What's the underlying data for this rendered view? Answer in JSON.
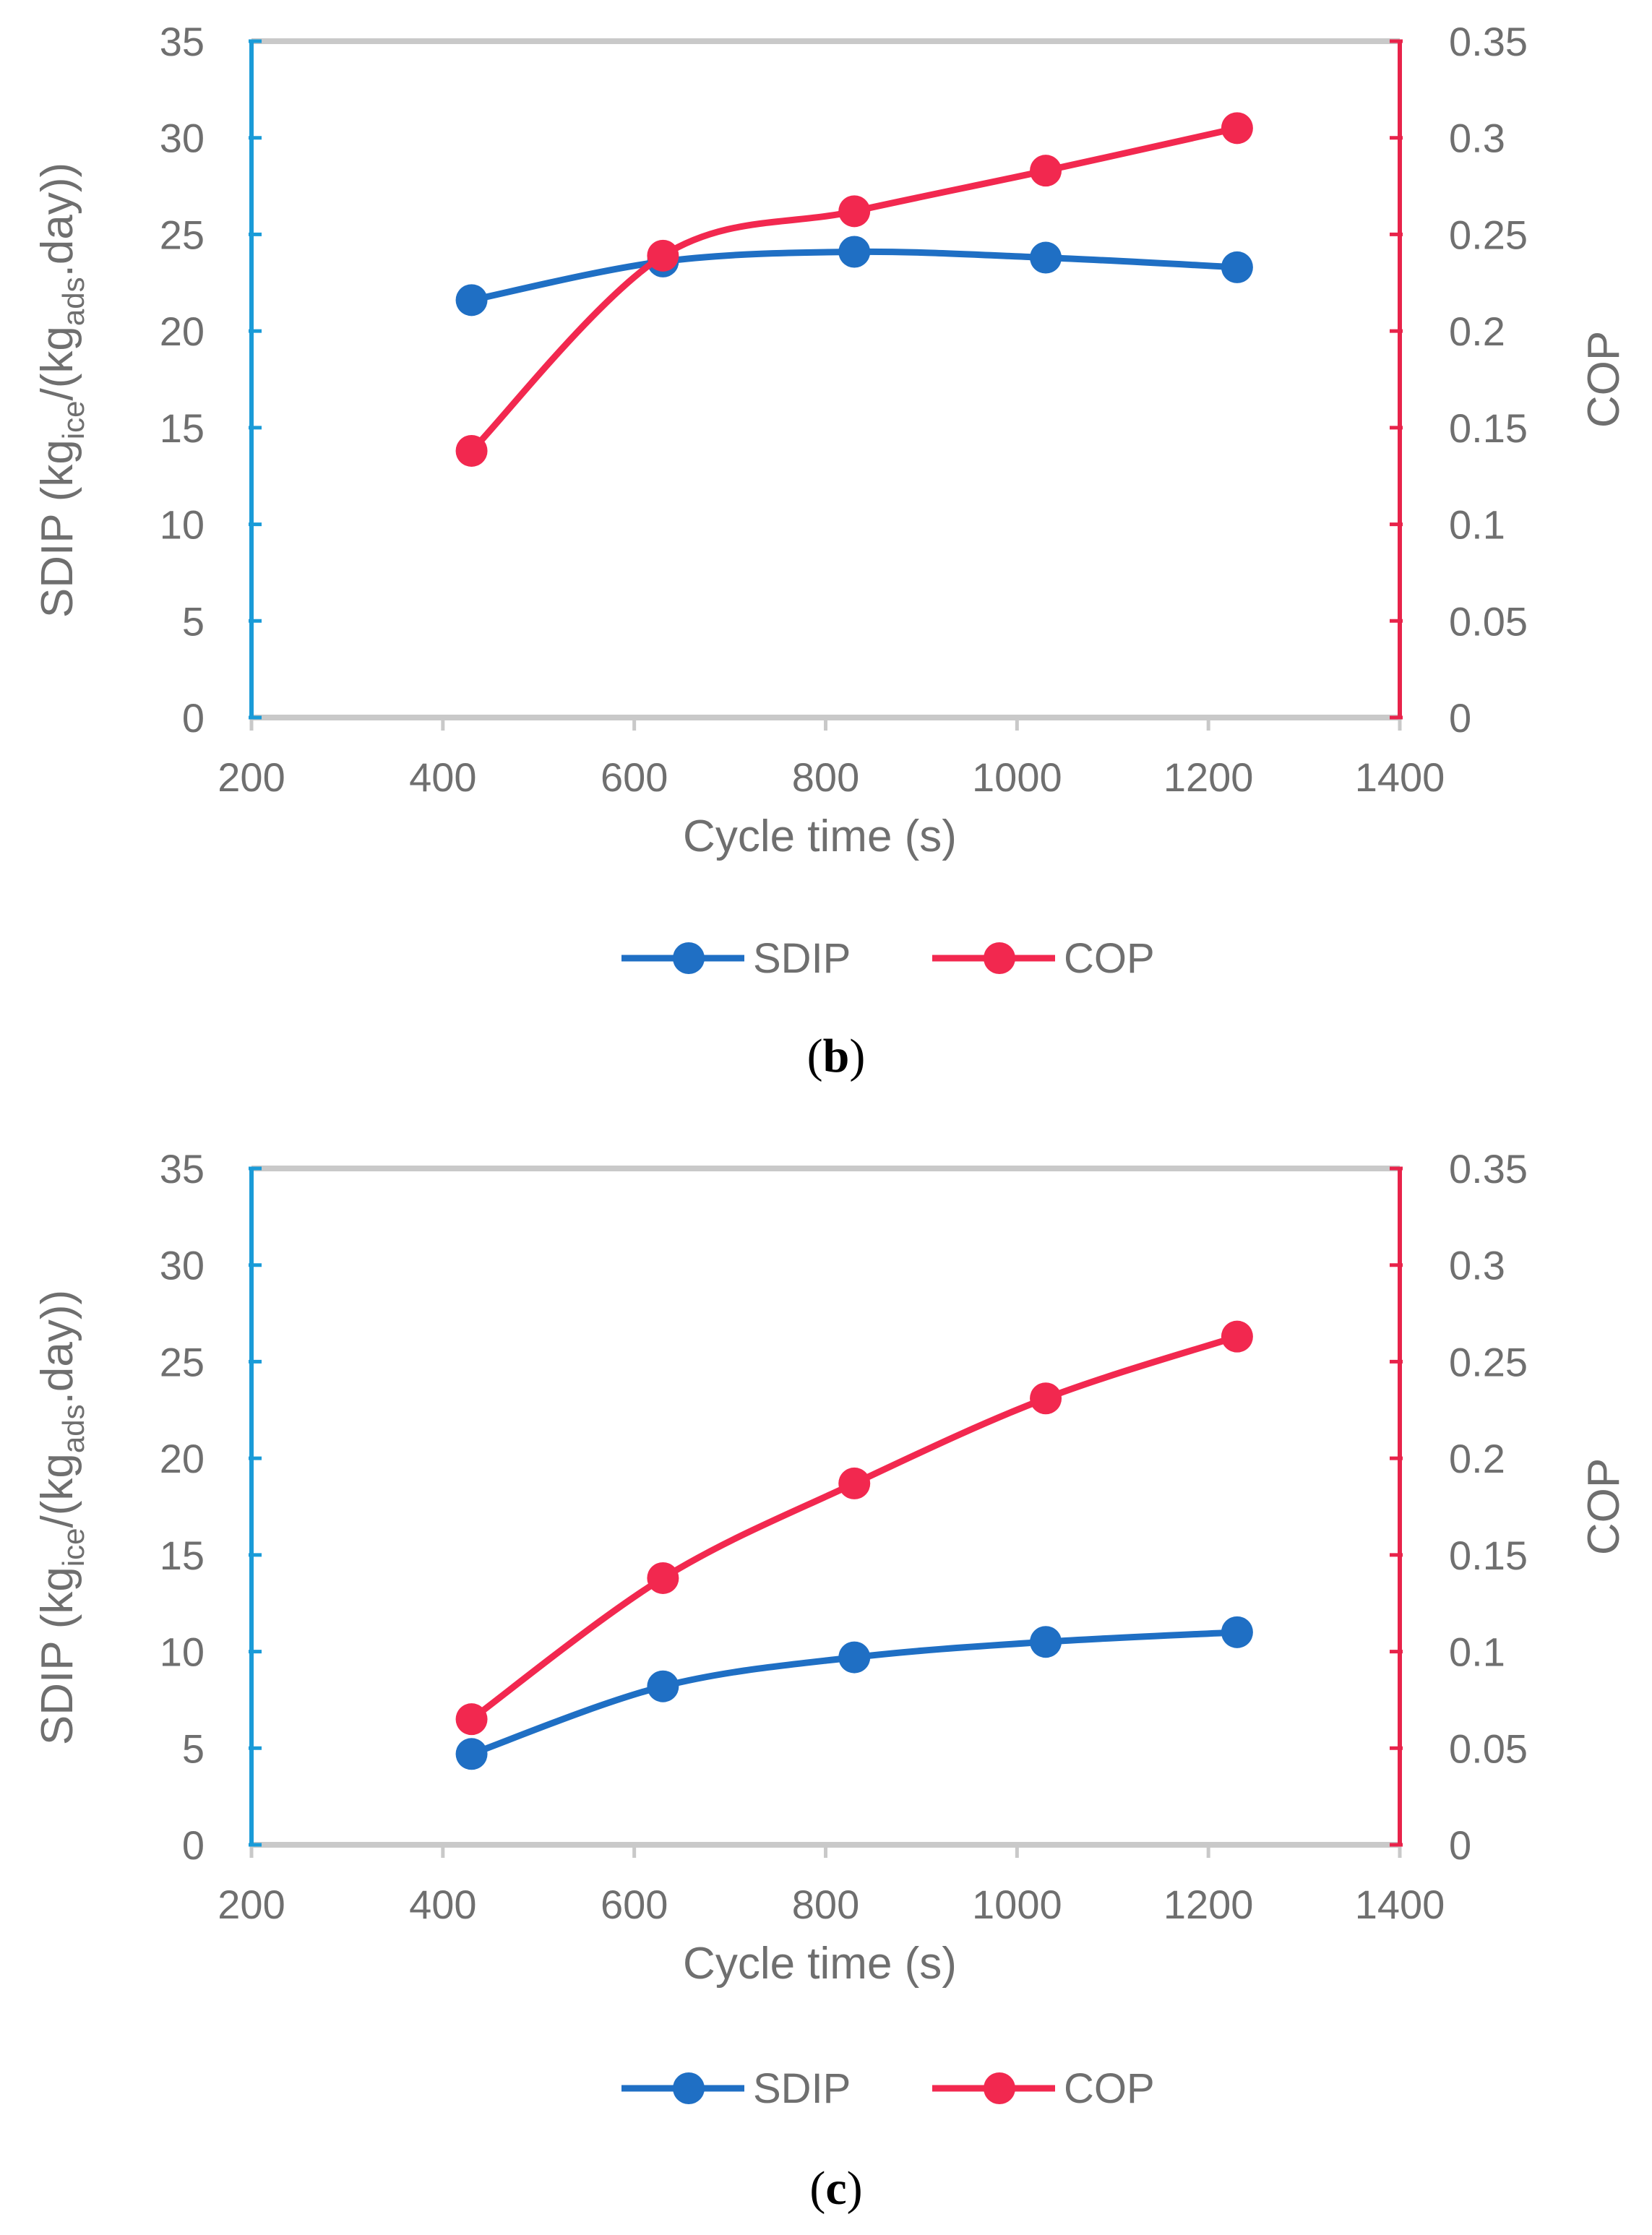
{
  "colors": {
    "sdip": "#1f6fc4",
    "cop": "#f2284f",
    "left_axis": "#1a9bd8",
    "right_axis": "#e8234a",
    "frame": "#c9c9c9",
    "text": "#6f6f6f"
  },
  "chart_data": [
    {
      "type": "line",
      "panel": "b",
      "caption_letter": "b",
      "x": [
        430,
        630,
        830,
        1030,
        1230
      ],
      "xlabel": "Cycle time (s)",
      "xlim": [
        200,
        1400
      ],
      "xticks": [
        "200",
        "400",
        "600",
        "800",
        "1000",
        "1200",
        "1400"
      ],
      "ylabel_left": {
        "prefix": "SDIP (kg",
        "sub1": "ice",
        "middle": "/(kg",
        "sub2": "ads",
        "suffix": ".day))"
      },
      "ylim_left": [
        0,
        35
      ],
      "yticks_left": [
        "0",
        "5",
        "10",
        "15",
        "20",
        "25",
        "30",
        "35"
      ],
      "ylabel_right": "COP",
      "ylim_right": [
        0,
        0.35
      ],
      "yticks_right": [
        "0",
        "0.05",
        "0.1",
        "0.15",
        "0.2",
        "0.25",
        "0.3",
        "0.35"
      ],
      "series": [
        {
          "name": "SDIP",
          "axis": "left",
          "values": [
            21.6,
            23.6,
            24.1,
            23.8,
            23.3
          ]
        },
        {
          "name": "COP",
          "axis": "right",
          "values": [
            0.138,
            0.239,
            0.262,
            0.283,
            0.305
          ]
        }
      ],
      "legend": [
        "SDIP",
        "COP"
      ]
    },
    {
      "type": "line",
      "panel": "c",
      "caption_letter": "c",
      "x": [
        430,
        630,
        830,
        1030,
        1230
      ],
      "xlabel": "Cycle time (s)",
      "xlim": [
        200,
        1400
      ],
      "xticks": [
        "200",
        "400",
        "600",
        "800",
        "1000",
        "1200",
        "1400"
      ],
      "ylabel_left": {
        "prefix": "SDIP (kg",
        "sub1": "ice",
        "middle": "/(kg",
        "sub2": "ads",
        "suffix": ".day))"
      },
      "ylim_left": [
        0,
        35
      ],
      "yticks_left": [
        "0",
        "5",
        "10",
        "15",
        "20",
        "25",
        "30",
        "35"
      ],
      "ylabel_right": "COP",
      "ylim_right": [
        0,
        0.35
      ],
      "yticks_right": [
        "0",
        "0.05",
        "0.1",
        "0.15",
        "0.2",
        "0.25",
        "0.3",
        "0.35"
      ],
      "series": [
        {
          "name": "SDIP",
          "axis": "left",
          "values": [
            4.7,
            8.2,
            9.7,
            10.5,
            11.0
          ]
        },
        {
          "name": "COP",
          "axis": "right",
          "values": [
            0.065,
            0.138,
            0.187,
            0.231,
            0.263
          ]
        }
      ],
      "legend": [
        "SDIP",
        "COP"
      ]
    }
  ]
}
